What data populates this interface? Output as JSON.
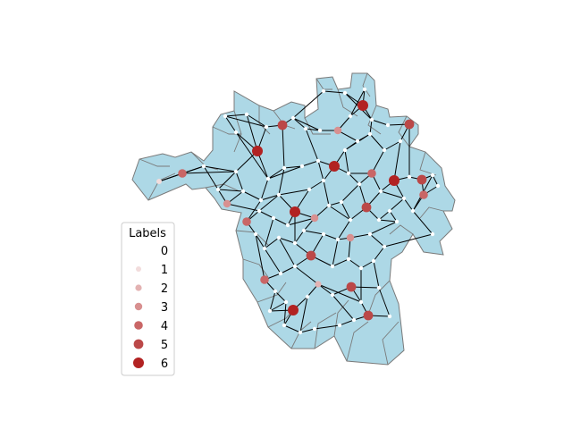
{
  "colors": {
    "region_fill": "#add8e6",
    "region_stroke": "#7a7a7a",
    "edge": "#000000",
    "legend_border": "#cccccc"
  },
  "legend": {
    "title": "Labels",
    "items": [
      {
        "label": "0",
        "color": "#ffffff"
      },
      {
        "label": "1",
        "color": "#f2dcdc"
      },
      {
        "label": "2",
        "color": "#e3b2b2"
      },
      {
        "label": "3",
        "color": "#d89090"
      },
      {
        "label": "4",
        "color": "#c96666"
      },
      {
        "label": "5",
        "color": "#bb4848"
      },
      {
        "label": "6",
        "color": "#b22222"
      }
    ]
  }
}
